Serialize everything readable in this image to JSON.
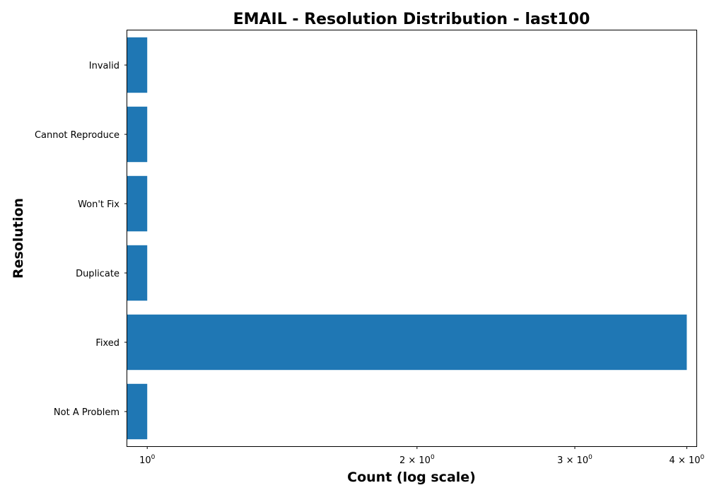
{
  "chart_data": {
    "type": "bar",
    "orientation": "horizontal",
    "title": "EMAIL - Resolution Distribution - last100",
    "xlabel": "Count (log scale)",
    "ylabel": "Resolution",
    "x_scale": "log",
    "xlim": [
      0.95,
      4.1
    ],
    "x_ticks": [
      {
        "value": 1,
        "label": "10",
        "exponent": "0"
      },
      {
        "value": 2,
        "label": "2 × 10",
        "exponent": "0"
      },
      {
        "value": 3,
        "label": "3 × 10",
        "exponent": "0"
      },
      {
        "value": 4,
        "label": "4 × 10",
        "exponent": "0"
      }
    ],
    "categories": [
      "Not A Problem",
      "Fixed",
      "Duplicate",
      "Won't Fix",
      "Cannot Reproduce",
      "Invalid"
    ],
    "values": [
      1,
      4,
      1,
      1,
      1,
      1
    ],
    "bar_color": "#1f77b4",
    "grid": false,
    "legend": "none"
  }
}
